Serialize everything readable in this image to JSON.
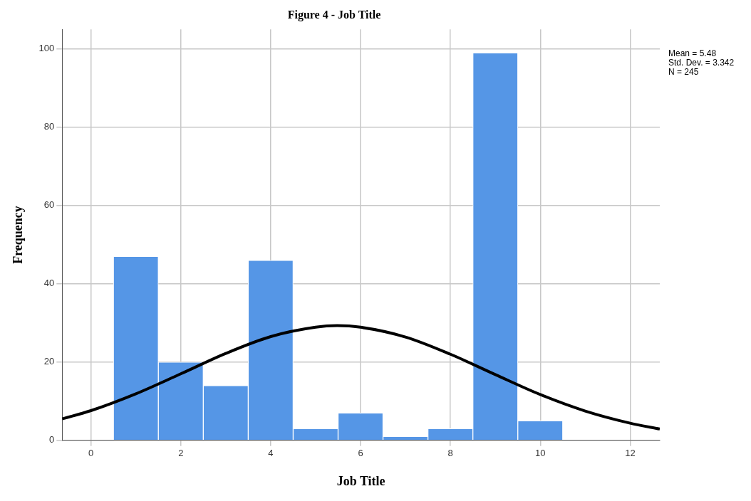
{
  "chart_data": {
    "type": "histogram",
    "title": "Figure 4 - Job Title",
    "xlabel": "Job Title",
    "ylabel": "Frequency",
    "bins": [
      0.5,
      1.5,
      2.5,
      3.5,
      4.5,
      5.5,
      6.5,
      7.5,
      8.5,
      9.5,
      10.5
    ],
    "series": [
      {
        "color": "#5596e6",
        "values": [
          47,
          20,
          14,
          46,
          3,
          7,
          1,
          3,
          99,
          5
        ]
      },
      {
        "type": "line",
        "color": "#000000",
        "x": [
          -0.64,
          0,
          1,
          2,
          3,
          4,
          5,
          5.48,
          6,
          7,
          8,
          9,
          10,
          11,
          12,
          12.66
        ],
        "values": [
          5.5,
          7.6,
          11.9,
          17.0,
          22.2,
          26.5,
          28.9,
          29.3,
          28.9,
          26.4,
          22.0,
          16.8,
          11.7,
          7.5,
          4.4,
          2.9
        ]
      }
    ],
    "xlim": [
      -0.64,
      12.66
    ],
    "xticks": [
      0,
      2,
      4,
      6,
      8,
      10,
      12
    ],
    "ylim": [
      0,
      105
    ],
    "yticks": [
      0,
      20,
      40,
      60,
      80,
      100
    ],
    "grid": true,
    "legend": false,
    "annotations": [
      "Mean = 5.48",
      "Std. Dev. = 3.342",
      "N = 245"
    ]
  }
}
